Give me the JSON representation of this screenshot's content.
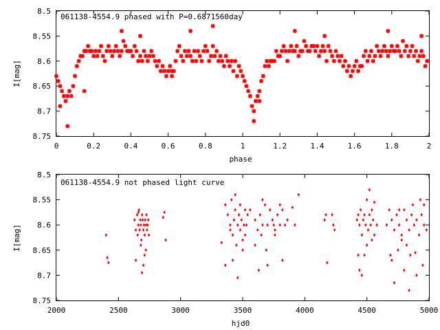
{
  "colors": {
    "points": "#ff0000",
    "axes": "#000000",
    "background": "#ffffff"
  },
  "chart_data": [
    {
      "type": "scatter",
      "title": "061138-4554.9 phased with P=0.6871560day",
      "xlabel": "phase",
      "ylabel": "I[mag]",
      "xlim": [
        0,
        2
      ],
      "ylim": [
        8.75,
        8.5
      ],
      "y_inverted": true,
      "marker": "star",
      "xticks": [
        0,
        0.2,
        0.4,
        0.6,
        0.8,
        1,
        1.2,
        1.4,
        1.6,
        1.8,
        2
      ],
      "xtick_labels": [
        "0",
        "0.2",
        "0.4",
        "0.6",
        "0.8",
        "1",
        "1.2",
        "1.4",
        "1.6",
        "1.8",
        "2"
      ],
      "yticks": [
        8.5,
        8.55,
        8.6,
        8.65,
        8.7,
        8.75
      ],
      "ytick_labels": [
        "8.5",
        "8.55",
        "8.6",
        "8.65",
        "8.7",
        "8.75"
      ],
      "grid": false,
      "series": [
        {
          "x": [
            0.0,
            0.01,
            0.02,
            0.03,
            0.04,
            0.05,
            0.06,
            0.07,
            0.08,
            0.09,
            0.1,
            0.11,
            0.12,
            0.13,
            0.14,
            0.15,
            0.16,
            0.17,
            0.18,
            0.19,
            0.2,
            0.21,
            0.22,
            0.23,
            0.24,
            0.25,
            0.26,
            0.27,
            0.28,
            0.29,
            0.3,
            0.31,
            0.32,
            0.33,
            0.34,
            0.35,
            0.36,
            0.37,
            0.38,
            0.39,
            0.4,
            0.41,
            0.42,
            0.43,
            0.44,
            0.45,
            0.46,
            0.47,
            0.48,
            0.49,
            0.5,
            0.51,
            0.52,
            0.53,
            0.54,
            0.55,
            0.56,
            0.57,
            0.58,
            0.59,
            0.6,
            0.61,
            0.62,
            0.63,
            0.64,
            0.65,
            0.66,
            0.67,
            0.68,
            0.69,
            0.7,
            0.71,
            0.72,
            0.73,
            0.74,
            0.75,
            0.76,
            0.77,
            0.78,
            0.79,
            0.8,
            0.81,
            0.82,
            0.83,
            0.84,
            0.85,
            0.86,
            0.87,
            0.88,
            0.89,
            0.9,
            0.91,
            0.92,
            0.93,
            0.94,
            0.95,
            0.96,
            0.97,
            0.98,
            0.99,
            1.0,
            1.01,
            1.02,
            1.03,
            1.04,
            1.05,
            1.06,
            1.07,
            1.08,
            1.09,
            1.1,
            1.11,
            1.12,
            1.13,
            1.14,
            1.15,
            1.16,
            1.17,
            1.18,
            1.19,
            1.2,
            1.21,
            1.22,
            1.23,
            1.24,
            1.25,
            1.26,
            1.27,
            1.28,
            1.29,
            1.3,
            1.31,
            1.32,
            1.33,
            1.34,
            1.35,
            1.36,
            1.37,
            1.38,
            1.39,
            1.4,
            1.41,
            1.42,
            1.43,
            1.44,
            1.45,
            1.46,
            1.47,
            1.48,
            1.49,
            1.5,
            1.51,
            1.52,
            1.53,
            1.54,
            1.55,
            1.56,
            1.57,
            1.58,
            1.59,
            1.6,
            1.61,
            1.62,
            1.63,
            1.64,
            1.65,
            1.66,
            1.67,
            1.68,
            1.69,
            1.7,
            1.71,
            1.72,
            1.73,
            1.74,
            1.75,
            1.76,
            1.77,
            1.78,
            1.79,
            1.8,
            1.81,
            1.82,
            1.83,
            1.84,
            1.85,
            1.86,
            1.87,
            1.88,
            1.89,
            1.9,
            1.91,
            1.92,
            1.93,
            1.94,
            1.95,
            1.96,
            1.97,
            1.98,
            1.99,
            0.06,
            0.02,
            0.15,
            0.35,
            0.45,
            0.62,
            0.72,
            0.84,
            1.06,
            1.09,
            1.28,
            1.44,
            1.78,
            1.96
          ],
          "y": [
            8.63,
            8.64,
            8.65,
            8.66,
            8.67,
            8.68,
            8.67,
            8.66,
            8.67,
            8.65,
            8.63,
            8.61,
            8.6,
            8.59,
            8.59,
            8.58,
            8.58,
            8.57,
            8.58,
            8.58,
            8.59,
            8.58,
            8.59,
            8.58,
            8.57,
            8.59,
            8.6,
            8.58,
            8.57,
            8.58,
            8.59,
            8.58,
            8.57,
            8.58,
            8.59,
            8.58,
            8.56,
            8.57,
            8.58,
            8.58,
            8.58,
            8.59,
            8.57,
            8.58,
            8.6,
            8.59,
            8.6,
            8.58,
            8.59,
            8.6,
            8.59,
            8.58,
            8.59,
            8.6,
            8.61,
            8.6,
            8.62,
            8.61,
            8.62,
            8.63,
            8.62,
            8.61,
            8.63,
            8.62,
            8.6,
            8.58,
            8.57,
            8.59,
            8.6,
            8.58,
            8.59,
            8.58,
            8.59,
            8.6,
            8.58,
            8.6,
            8.58,
            8.59,
            8.6,
            8.58,
            8.57,
            8.58,
            8.6,
            8.59,
            8.57,
            8.59,
            8.58,
            8.6,
            8.59,
            8.6,
            8.61,
            8.59,
            8.6,
            8.61,
            8.6,
            8.62,
            8.6,
            8.63,
            8.61,
            8.62,
            8.63,
            8.64,
            8.65,
            8.66,
            8.67,
            8.69,
            8.7,
            8.68,
            8.67,
            8.66,
            8.64,
            8.63,
            8.61,
            8.6,
            8.61,
            8.6,
            8.6,
            8.6,
            8.58,
            8.59,
            8.59,
            8.58,
            8.57,
            8.58,
            8.6,
            8.58,
            8.57,
            8.58,
            8.58,
            8.57,
            8.59,
            8.58,
            8.58,
            8.56,
            8.57,
            8.58,
            8.58,
            8.57,
            8.57,
            8.58,
            8.57,
            8.59,
            8.58,
            8.57,
            8.58,
            8.6,
            8.57,
            8.58,
            8.59,
            8.6,
            8.58,
            8.59,
            8.6,
            8.59,
            8.61,
            8.6,
            8.62,
            8.61,
            8.63,
            8.62,
            8.61,
            8.6,
            8.62,
            8.61,
            8.61,
            8.59,
            8.58,
            8.6,
            8.59,
            8.58,
            8.6,
            8.59,
            8.57,
            8.58,
            8.59,
            8.58,
            8.57,
            8.58,
            8.59,
            8.58,
            8.57,
            8.58,
            8.58,
            8.57,
            8.58,
            8.59,
            8.56,
            8.58,
            8.57,
            8.59,
            8.58,
            8.57,
            8.59,
            8.58,
            8.6,
            8.59,
            8.58,
            8.59,
            8.61,
            8.6,
            8.73,
            8.69,
            8.66,
            8.54,
            8.55,
            8.62,
            8.54,
            8.53,
            8.72,
            8.68,
            8.54,
            8.55,
            8.54,
            8.55
          ]
        }
      ]
    },
    {
      "type": "scatter",
      "title": "061138-4554.9 not phased light curve",
      "xlabel": "hjd0",
      "ylabel": "I[mag]",
      "xlim": [
        2000,
        5000
      ],
      "ylim": [
        8.75,
        8.5
      ],
      "y_inverted": true,
      "marker": "diamond",
      "xticks": [
        2000,
        2500,
        3000,
        3500,
        4000,
        4500,
        5000
      ],
      "xtick_labels": [
        "2000",
        "2500",
        "3000",
        "3500",
        "4000",
        "4500",
        "5000"
      ],
      "yticks": [
        8.5,
        8.55,
        8.6,
        8.65,
        8.7,
        8.75
      ],
      "ytick_labels": [
        "8.5",
        "8.55",
        "8.6",
        "8.65",
        "8.7",
        "8.75"
      ],
      "grid": false,
      "series": [
        {
          "x": [
            2400,
            2410,
            2420,
            2630,
            2640,
            2650,
            2655,
            2660,
            2665,
            2670,
            2675,
            2680,
            2685,
            2690,
            2695,
            2700,
            2705,
            2710,
            2715,
            2720,
            2725,
            2730,
            2735,
            2740,
            2745,
            2640,
            2680,
            2700,
            2720,
            2660,
            2690,
            2710,
            2860,
            2870,
            2880,
            3330,
            3360,
            3380,
            3400,
            3410,
            3420,
            3430,
            3440,
            3450,
            3460,
            3470,
            3480,
            3490,
            3500,
            3510,
            3520,
            3530,
            3540,
            3360,
            3420,
            3460,
            3500,
            3440,
            3400,
            3480,
            3520,
            3560,
            3600,
            3620,
            3640,
            3660,
            3680,
            3700,
            3720,
            3740,
            3760,
            3780,
            3800,
            3820,
            3840,
            3860,
            3600,
            3650,
            3700,
            3750,
            3800,
            3630,
            3690,
            3760,
            3820,
            3660,
            3900,
            3920,
            3950,
            4160,
            4170,
            4180,
            4220,
            4230,
            4240,
            4420,
            4430,
            4440,
            4450,
            4460,
            4470,
            4480,
            4490,
            4500,
            4510,
            4520,
            4530,
            4540,
            4550,
            4560,
            4580,
            4440,
            4480,
            4520,
            4460,
            4500,
            4540,
            4430,
            4560,
            4660,
            4680,
            4700,
            4720,
            4740,
            4760,
            4780,
            4800,
            4820,
            4840,
            4860,
            4880,
            4900,
            4920,
            4940,
            4960,
            4980,
            4700,
            4750,
            4800,
            4850,
            4900,
            4950,
            4720,
            4780,
            4840,
            4870,
            4930,
            4690,
            4760,
            4820,
            4890,
            4960
          ],
          "y": [
            8.62,
            8.665,
            8.675,
            8.59,
            8.61,
            8.58,
            8.62,
            8.6,
            8.57,
            8.61,
            8.59,
            8.6,
            8.63,
            8.58,
            8.59,
            8.61,
            8.6,
            8.62,
            8.59,
            8.6,
            8.58,
            8.61,
            8.6,
            8.59,
            8.62,
            8.67,
            8.64,
            8.68,
            8.65,
            8.575,
            8.695,
            8.66,
            8.585,
            8.575,
            8.63,
            8.635,
            8.56,
            8.58,
            8.6,
            8.55,
            8.62,
            8.59,
            8.57,
            8.64,
            8.6,
            8.58,
            8.61,
            8.59,
            8.63,
            8.6,
            8.57,
            8.6,
            8.58,
            8.68,
            8.67,
            8.705,
            8.65,
            8.54,
            8.61,
            8.56,
            8.62,
            8.57,
            8.59,
            8.61,
            8.58,
            8.6,
            8.56,
            8.6,
            8.57,
            8.59,
            8.61,
            8.58,
            8.6,
            8.57,
            8.6,
            8.59,
            8.64,
            8.62,
            8.68,
            8.6,
            8.56,
            8.69,
            8.65,
            8.62,
            8.67,
            8.55,
            8.565,
            8.6,
            8.54,
            8.59,
            8.58,
            8.675,
            8.58,
            8.6,
            8.61,
            8.59,
            8.58,
            8.6,
            8.57,
            8.62,
            8.59,
            8.58,
            8.6,
            8.55,
            8.61,
            8.58,
            8.6,
            8.57,
            8.59,
            8.62,
            8.6,
            8.69,
            8.66,
            8.53,
            8.7,
            8.64,
            8.63,
            8.66,
            8.555,
            8.6,
            8.57,
            8.59,
            8.61,
            8.58,
            8.6,
            8.62,
            8.57,
            8.59,
            8.61,
            8.58,
            8.6,
            8.59,
            8.62,
            8.58,
            8.6,
            8.61,
            8.67,
            8.65,
            8.69,
            8.66,
            8.7,
            8.68,
            8.715,
            8.63,
            8.73,
            8.56,
            8.55,
            8.66,
            8.57,
            8.64,
            8.655,
            8.56
          ]
        }
      ]
    }
  ]
}
